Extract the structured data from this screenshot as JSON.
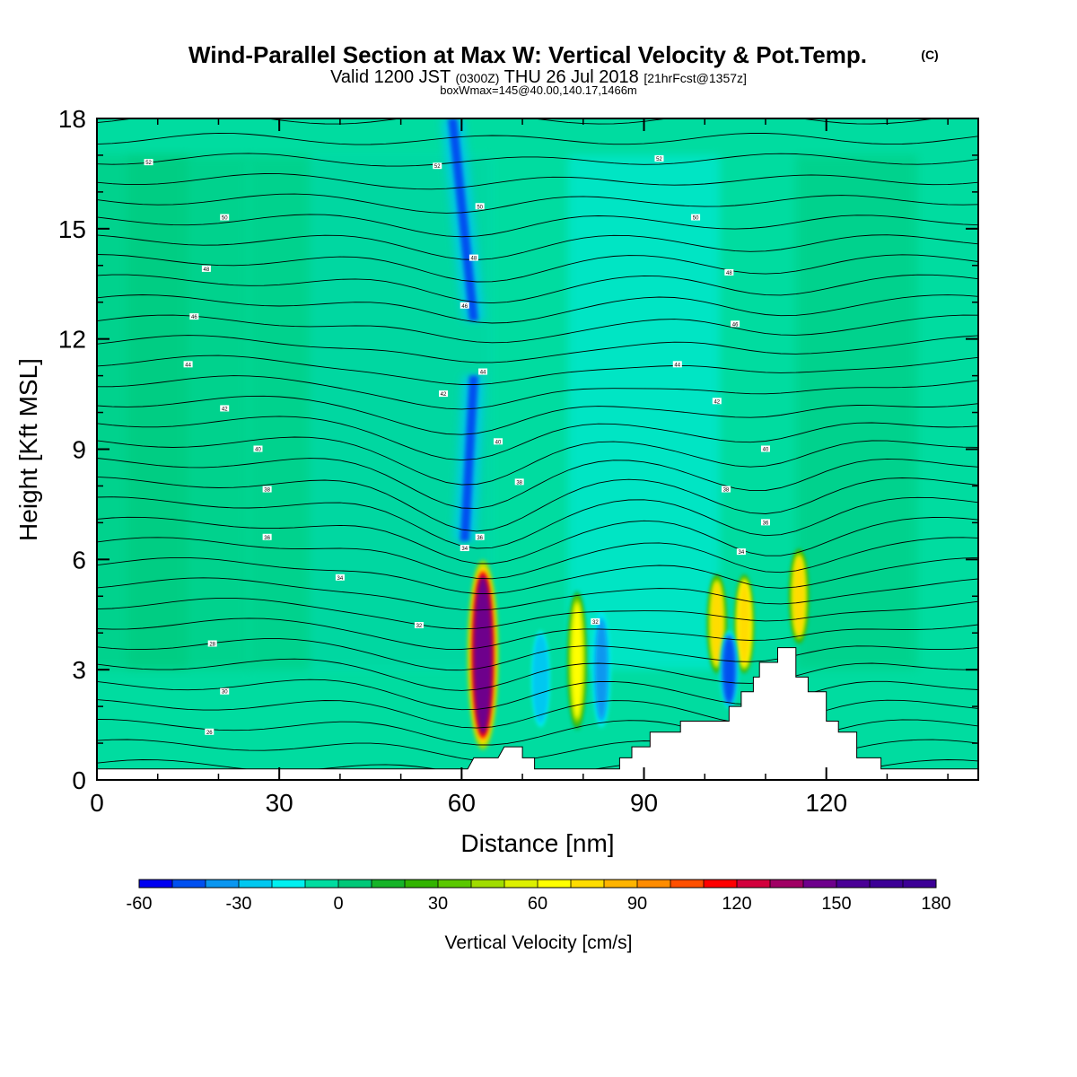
{
  "title": "Wind-Parallel Section at Max W: Vertical Velocity & Pot.Temp.",
  "title_mark": "(C)",
  "subtitle": {
    "part1": "Valid 1200 JST ",
    "part2": "(0300Z)",
    "part3": " THU 26 Jul 2018 ",
    "part4": "[21hrFcst@1357z]"
  },
  "subtitle2": "boxWmax=145@40.00,140.17,1466m",
  "chart_data": {
    "type": "heatmap",
    "xlabel": "Distance [nm]",
    "ylabel": "Height [Kft MSL]",
    "xlim": [
      0,
      145
    ],
    "ylim": [
      0,
      18
    ],
    "xticks": [
      "0",
      "30",
      "60",
      "90",
      "120"
    ],
    "yticks": [
      "0",
      "3",
      "6",
      "9",
      "12",
      "15",
      "18"
    ],
    "colorbar": {
      "label": "Vertical Velocity [cm/s]",
      "min": -60,
      "max": 180,
      "step": 10,
      "tick_labels": [
        "-60",
        "-30",
        "0",
        "30",
        "60",
        "90",
        "120",
        "150",
        "180"
      ],
      "colors": [
        "#0000f0",
        "#0050f0",
        "#0a96f0",
        "#00c8f0",
        "#00f0f0",
        "#00dca0",
        "#00c878",
        "#16b428",
        "#32b400",
        "#5ac800",
        "#a0dc00",
        "#dcf000",
        "#ffff00",
        "#ffdc00",
        "#ffb400",
        "#ff8c00",
        "#ff5000",
        "#ff0000",
        "#d2003c",
        "#a00064",
        "#6e008c",
        "#4a0096",
        "#3c0096",
        "#3c0096"
      ]
    },
    "background_value": 0,
    "features": [
      {
        "name": "downdraft band upper",
        "x_start": 58.5,
        "x_end": 62,
        "z_start": 18,
        "z_end": 12.5,
        "value": -50
      },
      {
        "name": "downdraft band mid",
        "x_start": 62,
        "x_end": 60.5,
        "z_start": 11,
        "z_end": 6.5,
        "value": -45
      },
      {
        "name": "updraft max",
        "x": 63.5,
        "z_start": 1.0,
        "z_end": 5.8,
        "value": 145
      },
      {
        "name": "updraft",
        "x": 79,
        "z_start": 1.5,
        "z_end": 5.0,
        "value": 60
      },
      {
        "name": "downdraft",
        "x": 73,
        "z_start": 1.5,
        "z_end": 4.0,
        "value": -30
      },
      {
        "name": "downdraft",
        "x": 83,
        "z_start": 1.5,
        "z_end": 4.5,
        "value": -40
      },
      {
        "name": "updraft",
        "x": 102,
        "z_start": 3.0,
        "z_end": 5.5,
        "value": 70
      },
      {
        "name": "updraft",
        "x": 106.5,
        "z_start": 3.0,
        "z_end": 5.5,
        "value": 75
      },
      {
        "name": "downdraft",
        "x": 104,
        "z_start": 2.0,
        "z_end": 4.0,
        "value": -45
      },
      {
        "name": "updraft",
        "x": 115.5,
        "z_start": 3.8,
        "z_end": 6.2,
        "value": 70
      }
    ],
    "theta_contour_labels": [
      {
        "x": 8.5,
        "z": 16.8,
        "label": "52"
      },
      {
        "x": 21,
        "z": 15.3,
        "label": "50"
      },
      {
        "x": 18,
        "z": 13.9,
        "label": "48"
      },
      {
        "x": 16,
        "z": 12.6,
        "label": "46"
      },
      {
        "x": 15,
        "z": 11.3,
        "label": "44"
      },
      {
        "x": 21,
        "z": 10.1,
        "label": "42"
      },
      {
        "x": 26.5,
        "z": 9.0,
        "label": "40"
      },
      {
        "x": 28,
        "z": 7.9,
        "label": "38"
      },
      {
        "x": 28,
        "z": 6.6,
        "label": "36"
      },
      {
        "x": 40,
        "z": 5.5,
        "label": "34"
      },
      {
        "x": 53,
        "z": 4.2,
        "label": "32"
      },
      {
        "x": 19,
        "z": 3.7,
        "label": "28"
      },
      {
        "x": 21,
        "z": 2.4,
        "label": "30"
      },
      {
        "x": 18.5,
        "z": 1.3,
        "label": "26"
      },
      {
        "x": 56,
        "z": 16.7,
        "label": "52"
      },
      {
        "x": 63,
        "z": 15.6,
        "label": "50"
      },
      {
        "x": 62,
        "z": 14.2,
        "label": "48"
      },
      {
        "x": 60.5,
        "z": 12.9,
        "label": "46"
      },
      {
        "x": 63.5,
        "z": 11.1,
        "label": "44"
      },
      {
        "x": 57,
        "z": 10.5,
        "label": "42"
      },
      {
        "x": 66,
        "z": 9.2,
        "label": "40"
      },
      {
        "x": 69.5,
        "z": 8.1,
        "label": "38"
      },
      {
        "x": 63,
        "z": 6.6,
        "label": "36"
      },
      {
        "x": 60.5,
        "z": 6.3,
        "label": "34"
      },
      {
        "x": 82,
        "z": 4.3,
        "label": "32"
      },
      {
        "x": 92.5,
        "z": 16.9,
        "label": "52"
      },
      {
        "x": 98.5,
        "z": 15.3,
        "label": "50"
      },
      {
        "x": 104,
        "z": 13.8,
        "label": "48"
      },
      {
        "x": 105,
        "z": 12.4,
        "label": "46"
      },
      {
        "x": 95.5,
        "z": 11.3,
        "label": "44"
      },
      {
        "x": 102,
        "z": 10.3,
        "label": "42"
      },
      {
        "x": 110,
        "z": 9.0,
        "label": "40"
      },
      {
        "x": 103.5,
        "z": 7.9,
        "label": "38"
      },
      {
        "x": 110,
        "z": 7.0,
        "label": "36"
      },
      {
        "x": 106,
        "z": 6.2,
        "label": "34"
      }
    ]
  }
}
